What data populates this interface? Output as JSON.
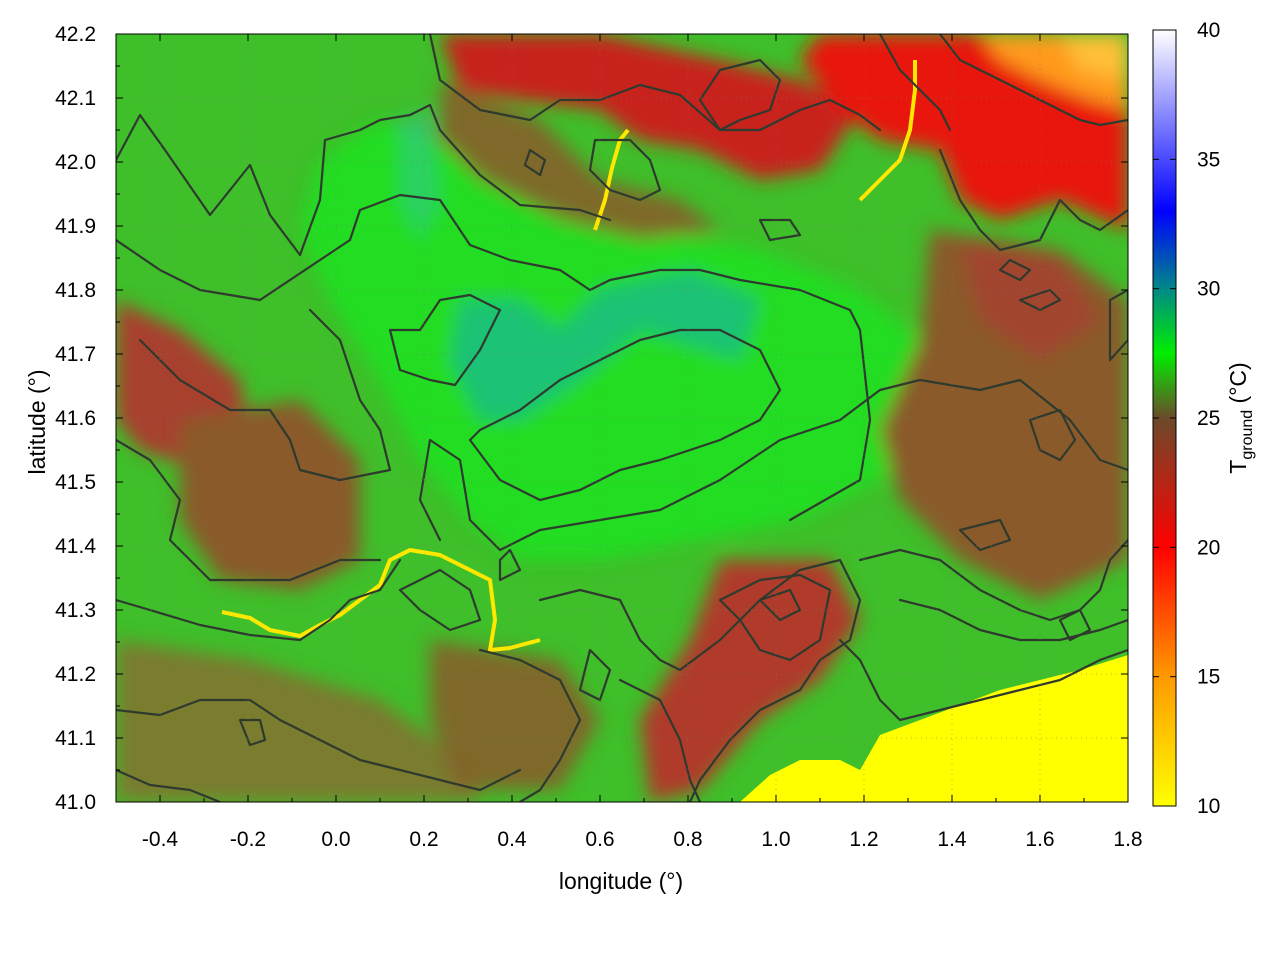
{
  "chart_data": {
    "type": "heatmap",
    "title": "",
    "xlabel": "longitude (°)",
    "ylabel": "latitude (°)",
    "xlim": [
      -0.5,
      1.8
    ],
    "ylim": [
      41.0,
      42.2
    ],
    "x_ticks": [
      -0.4,
      -0.2,
      0.0,
      0.2,
      0.4,
      0.6,
      0.8,
      1.0,
      1.2,
      1.4,
      1.6,
      1.8
    ],
    "x_tick_labels": [
      "-0.4",
      "-0.2",
      "0.0",
      "0.2",
      "0.4",
      "0.6",
      "0.8",
      "1.0",
      "1.2",
      "1.4",
      "1.6",
      "1.8"
    ],
    "y_ticks": [
      41.0,
      41.1,
      41.2,
      41.3,
      41.4,
      41.5,
      41.6,
      41.7,
      41.8,
      41.9,
      42.0,
      42.1,
      42.2
    ],
    "y_tick_labels": [
      "41.0",
      "41.1",
      "41.2",
      "41.3",
      "41.4",
      "41.5",
      "41.6",
      "41.7",
      "41.8",
      "41.9",
      "42.0",
      "42.1",
      "42.2"
    ],
    "grid": true,
    "colorbar": {
      "label": "T",
      "label_subscript": "ground",
      "label_unit": " (°C)",
      "range": [
        10,
        40
      ],
      "ticks": [
        10,
        15,
        20,
        25,
        30,
        35,
        40
      ],
      "tick_labels": [
        "10",
        "15",
        "20",
        "25",
        "30",
        "35",
        "40"
      ],
      "stops": [
        {
          "value": 10,
          "color": "#ffff00"
        },
        {
          "value": 15,
          "color": "#ff9900"
        },
        {
          "value": 20,
          "color": "#ff0000"
        },
        {
          "value": 25,
          "color": "#6b4a2a"
        },
        {
          "value": 27.5,
          "color": "#00ee00"
        },
        {
          "value": 30,
          "color": "#008888"
        },
        {
          "value": 33,
          "color": "#0000ff"
        },
        {
          "value": 40,
          "color": "#ffffff"
        }
      ]
    },
    "regions": [
      {
        "name": "background",
        "value": 25.5,
        "color": "#3fbf2a"
      },
      {
        "name": "north-east-hot",
        "value": 19,
        "color": "#e8140c"
      },
      {
        "name": "north-east-hottest",
        "value": 15,
        "color": "#ff9a1a"
      },
      {
        "name": "north-central-warm",
        "value": 21,
        "color": "#c8221c"
      },
      {
        "name": "west-warm",
        "value": 22.5,
        "color": "#a8402e"
      },
      {
        "name": "south-central-warm",
        "value": 22,
        "color": "#b03a2a"
      },
      {
        "name": "central-cool",
        "value": 27,
        "color": "#22dd22"
      },
      {
        "name": "central-coolest",
        "value": 28.5,
        "color": "#1ab890"
      },
      {
        "name": "east-warm",
        "value": 23.5,
        "color": "#8a5a2a"
      },
      {
        "name": "sea",
        "value": 10,
        "color": "#ffff00"
      }
    ]
  }
}
